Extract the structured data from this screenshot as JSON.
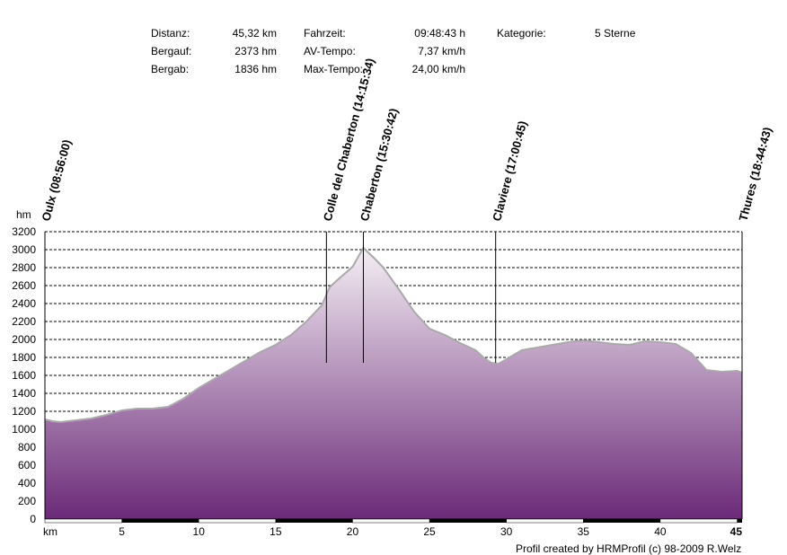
{
  "stats": {
    "distanz_label": "Distanz:",
    "distanz_value": "45,32 km",
    "bergauf_label": "Bergauf:",
    "bergauf_value": "2373 hm",
    "bergab_label": "Bergab:",
    "bergab_value": "1836 hm",
    "fahrzeit_label": "Fahrzeit:",
    "fahrzeit_value": "09:48:43 h",
    "avtempo_label": "AV-Tempo:",
    "avtempo_value": "7,37 km/h",
    "maxtempo_label": "Max-Tempo:",
    "maxtempo_value": "24,00 km/h",
    "kategorie_label": "Kategorie:",
    "kategorie_value": "5 Sterne"
  },
  "credit": "Profil created by HRMProfil (c) 98-2009 R.Welz",
  "chart_data": {
    "type": "area",
    "ylabel": "hm",
    "xlabel": "km",
    "xlim": [
      0,
      45.32
    ],
    "ylim": [
      0,
      3200
    ],
    "grid": true,
    "yticks": [
      0,
      200,
      400,
      600,
      800,
      1000,
      1200,
      1400,
      1600,
      1800,
      2000,
      2200,
      2400,
      2600,
      2800,
      3000,
      3200
    ],
    "xticks": [
      {
        "value": 0,
        "label": "km"
      },
      {
        "value": 5,
        "label": "5"
      },
      {
        "value": 10,
        "label": "10"
      },
      {
        "value": 15,
        "label": "15"
      },
      {
        "value": 20,
        "label": "20"
      },
      {
        "value": 25,
        "label": "25"
      },
      {
        "value": 30,
        "label": "30"
      },
      {
        "value": 35,
        "label": "35"
      },
      {
        "value": 40,
        "label": "40"
      },
      {
        "value": 45.32,
        "label": "45"
      }
    ],
    "x": [
      0,
      0.5,
      1,
      2,
      3,
      4,
      5,
      6,
      7,
      8,
      9,
      10,
      11,
      12,
      13,
      14,
      15,
      16,
      17,
      18,
      18.5,
      19,
      20,
      20.7,
      21.5,
      22,
      23,
      24,
      25,
      26,
      27,
      28,
      28.5,
      29,
      29.5,
      30,
      31,
      32,
      33,
      34,
      35,
      36,
      37,
      38,
      39,
      40,
      41,
      42,
      43,
      44,
      45,
      45.32
    ],
    "y": [
      1110,
      1090,
      1080,
      1100,
      1120,
      1160,
      1210,
      1230,
      1230,
      1250,
      1340,
      1460,
      1560,
      1660,
      1760,
      1860,
      1940,
      2050,
      2200,
      2380,
      2580,
      2660,
      2810,
      3020,
      2890,
      2800,
      2560,
      2310,
      2120,
      2050,
      1960,
      1880,
      1800,
      1740,
      1730,
      1780,
      1880,
      1910,
      1940,
      1970,
      1990,
      1970,
      1950,
      1940,
      1980,
      1970,
      1950,
      1850,
      1660,
      1640,
      1650,
      1630
    ],
    "waypoints": [
      {
        "x": 0,
        "label": "Oulx (08:56:00)"
      },
      {
        "x": 18.3,
        "label": "Colle del Chaberton (14:15:34)"
      },
      {
        "x": 20.7,
        "label": "Chaberton (15:30:42)"
      },
      {
        "x": 29.3,
        "label": "Claviere (17:00:45)"
      },
      {
        "x": 45.32,
        "label": "Thures (18:44:43)"
      }
    ],
    "colors": {
      "top": "#f4eef4",
      "bottom": "#6b2a78",
      "outline": "#a9a9a9",
      "grid": "#000000"
    }
  }
}
